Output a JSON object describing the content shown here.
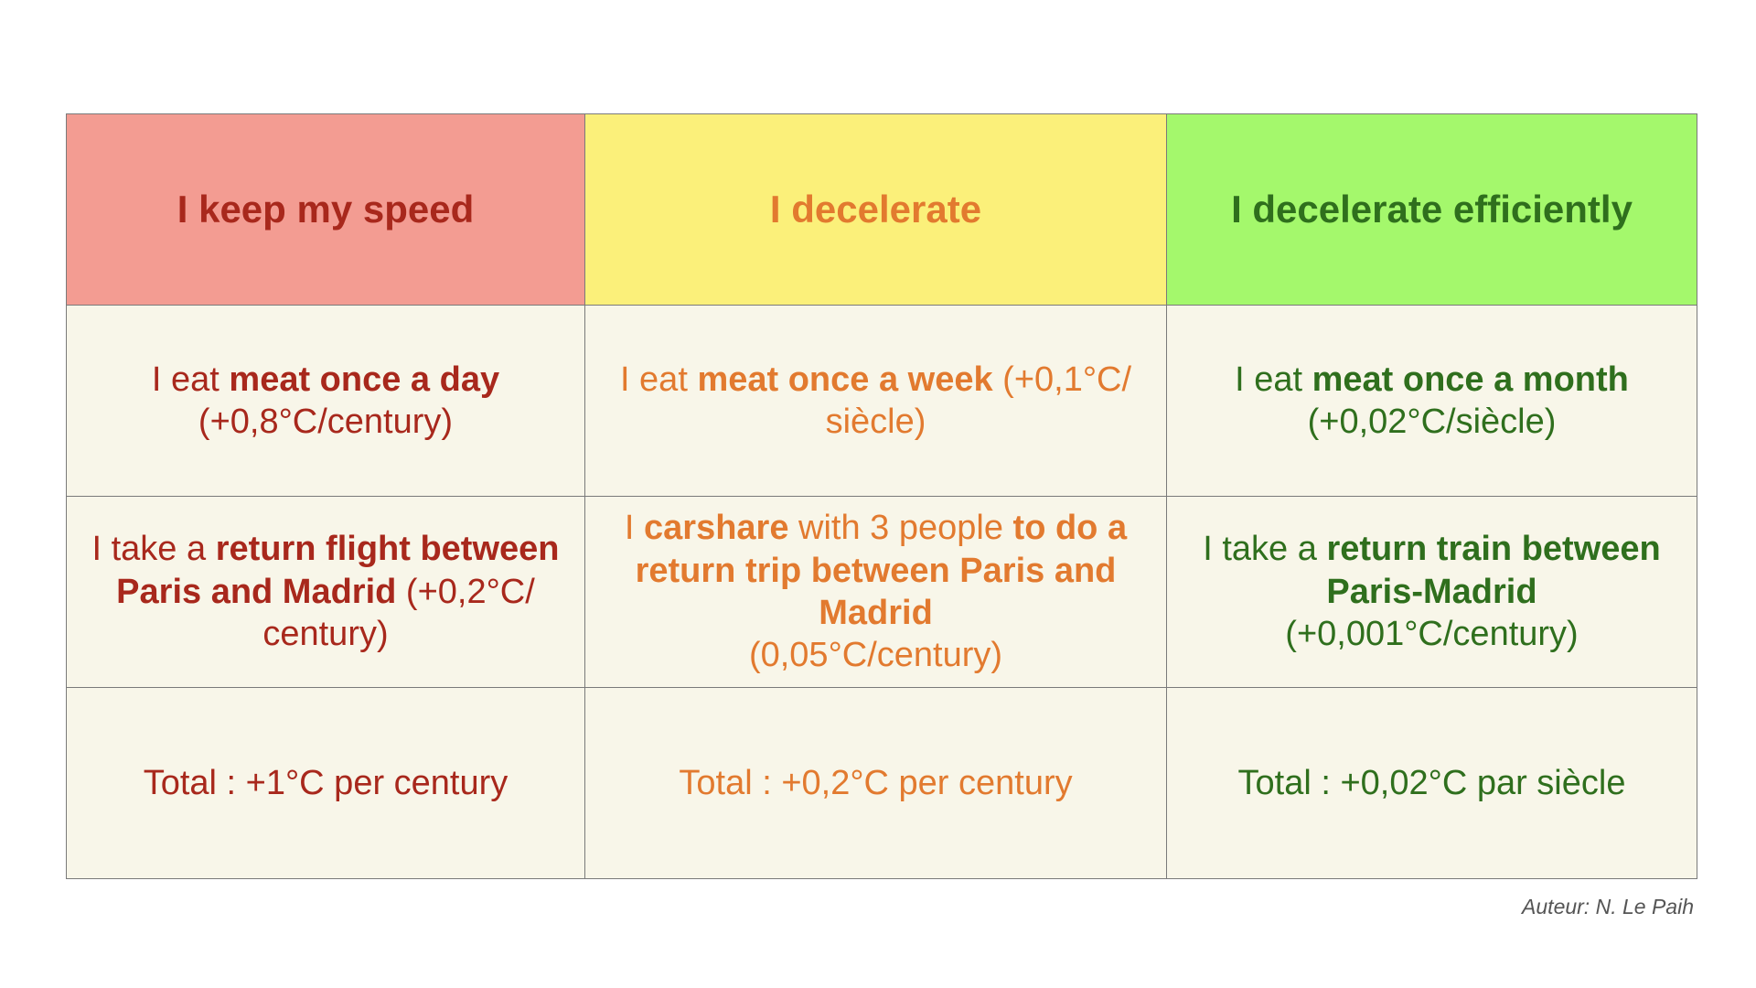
{
  "headers": [
    {
      "label": "I keep my speed",
      "color": "#a8281c",
      "background": "#f39c92"
    },
    {
      "label": "I decelerate",
      "color": "#e27a2f",
      "background": "#fbf07a"
    },
    {
      "label": "I decelerate efficiently",
      "color": "#2f6f1d",
      "background": "#a4f86c"
    }
  ],
  "rows": {
    "meat": {
      "keep": {
        "pre": "I eat ",
        "bold": "meat once a day",
        "post": "(+0,8°C/century)"
      },
      "decelerate": {
        "pre": "I eat ",
        "bold": "meat once a week",
        "post": " (+0,1°C/ siècle)"
      },
      "efficient": {
        "pre": "I eat ",
        "bold": "meat once a month",
        "post": "(+0,02°C/siècle)"
      }
    },
    "travel": {
      "keep": {
        "pre": "I take a ",
        "bold": "return flight between Paris and Madrid",
        "post": " (+0,2°C/ century)"
      },
      "decelerate": {
        "pre": "I ",
        "bold": "carshare",
        "mid": " with 3 people ",
        "bold2": "to do a return trip between Paris and Madrid",
        "post": "(0,05°C/century)"
      },
      "efficient": {
        "pre": "I take a ",
        "bold": "return train between Paris-Madrid",
        "post": "(+0,001°C/century)"
      }
    },
    "total": {
      "keep": "Total : +1°C per century",
      "decelerate": "Total : +0,2°C per century",
      "efficient": "Total : +0,02°C par siècle"
    }
  },
  "author": "Auteur: N. Le Paih",
  "cell_background": "#f8f6e9"
}
